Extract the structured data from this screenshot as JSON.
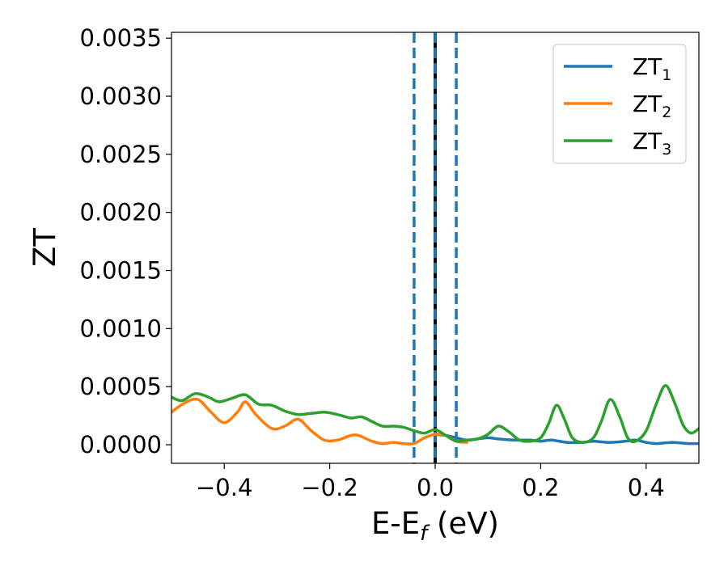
{
  "chart_data": {
    "type": "line",
    "xlabel": "E-E",
    "xlabel_sub": "f",
    "xlabel_unit": " (eV)",
    "ylabel": "ZT",
    "xlim": [
      -0.5,
      0.5
    ],
    "ylim": [
      -0.00016,
      0.00355
    ],
    "x_ticks": [
      -0.4,
      -0.2,
      0.0,
      0.2,
      0.4
    ],
    "x_tick_labels": [
      "−0.4",
      "−0.2",
      "0.0",
      "0.2",
      "0.4"
    ],
    "y_ticks": [
      0.0,
      0.0005,
      0.001,
      0.0015,
      0.002,
      0.0025,
      0.003,
      0.0035
    ],
    "y_tick_labels": [
      "0.0000",
      "0.0005",
      "0.0010",
      "0.0015",
      "0.0020",
      "0.0025",
      "0.0030",
      "0.0035"
    ],
    "grid": false,
    "legend_position": "top-right",
    "vlines": [
      {
        "x": -0.04,
        "style": "dashed",
        "color": "#1f77b4"
      },
      {
        "x": 0.0,
        "style": "solid",
        "color": "#000000"
      },
      {
        "x": 0.0,
        "style": "dashed",
        "color": "#1f77b4"
      },
      {
        "x": 0.04,
        "style": "dashed",
        "color": "#1f77b4"
      }
    ],
    "series": [
      {
        "name": "ZT",
        "name_sub": "1",
        "color": "#1f77b4",
        "x": [
          0.0,
          0.02,
          0.04,
          0.06,
          0.08,
          0.1,
          0.12,
          0.15,
          0.18,
          0.2,
          0.22,
          0.25,
          0.28,
          0.3,
          0.33,
          0.36,
          0.38,
          0.4,
          0.42,
          0.45,
          0.48,
          0.5
        ],
        "y": [
          9e-05,
          8e-05,
          6e-05,
          4e-05,
          5e-05,
          6e-05,
          5e-05,
          4e-05,
          4e-05,
          3e-05,
          4e-05,
          2e-05,
          2e-05,
          3e-05,
          2e-05,
          3e-05,
          4e-05,
          2e-05,
          1e-05,
          2e-05,
          1e-05,
          1e-05
        ]
      },
      {
        "name": "ZT",
        "name_sub": "2",
        "color": "#ff7f0e",
        "x": [
          -0.5,
          -0.475,
          -0.45,
          -0.425,
          -0.4,
          -0.375,
          -0.36,
          -0.34,
          -0.31,
          -0.285,
          -0.26,
          -0.235,
          -0.21,
          -0.185,
          -0.16,
          -0.145,
          -0.12,
          -0.1,
          -0.08,
          -0.06,
          -0.04,
          -0.02,
          0.0,
          0.02,
          0.04,
          0.06
        ],
        "y": [
          0.00028,
          0.00036,
          0.00039,
          0.00028,
          0.00019,
          0.00028,
          0.00037,
          0.00026,
          0.00014,
          0.00016,
          0.00022,
          0.00012,
          4e-05,
          4e-05,
          8e-05,
          8e-05,
          3e-05,
          1e-05,
          2e-05,
          1e-05,
          1e-05,
          6e-05,
          9e-05,
          8e-05,
          3e-05,
          2e-05
        ]
      },
      {
        "name": "ZT",
        "name_sub": "3",
        "color": "#2ca02c",
        "x": [
          -0.5,
          -0.48,
          -0.455,
          -0.43,
          -0.41,
          -0.385,
          -0.36,
          -0.335,
          -0.31,
          -0.285,
          -0.26,
          -0.235,
          -0.21,
          -0.185,
          -0.16,
          -0.14,
          -0.12,
          -0.1,
          -0.08,
          -0.06,
          -0.04,
          -0.02,
          0.0,
          0.02,
          0.04,
          0.06,
          0.08,
          0.1,
          0.12,
          0.14,
          0.16,
          0.18,
          0.2,
          0.215,
          0.23,
          0.245,
          0.26,
          0.28,
          0.3,
          0.315,
          0.332,
          0.35,
          0.365,
          0.38,
          0.4,
          0.42,
          0.437,
          0.455,
          0.47,
          0.485,
          0.5
        ],
        "y": [
          0.00041,
          0.00038,
          0.00044,
          0.00041,
          0.00037,
          0.0004,
          0.00043,
          0.00035,
          0.00034,
          0.00029,
          0.00026,
          0.00027,
          0.00028,
          0.00026,
          0.00023,
          0.00024,
          0.0002,
          0.00016,
          0.00016,
          0.00015,
          0.00012,
          0.0001,
          0.00013,
          8e-05,
          3e-05,
          4e-05,
          5e-05,
          9e-05,
          0.00016,
          0.00011,
          4e-05,
          3e-05,
          6e-05,
          0.00018,
          0.00034,
          0.00022,
          6e-05,
          2e-05,
          6e-05,
          0.0002,
          0.00039,
          0.00024,
          6e-05,
          3e-05,
          0.00012,
          0.00036,
          0.00051,
          0.00035,
          0.00017,
          0.0001,
          0.00014
        ]
      }
    ]
  }
}
